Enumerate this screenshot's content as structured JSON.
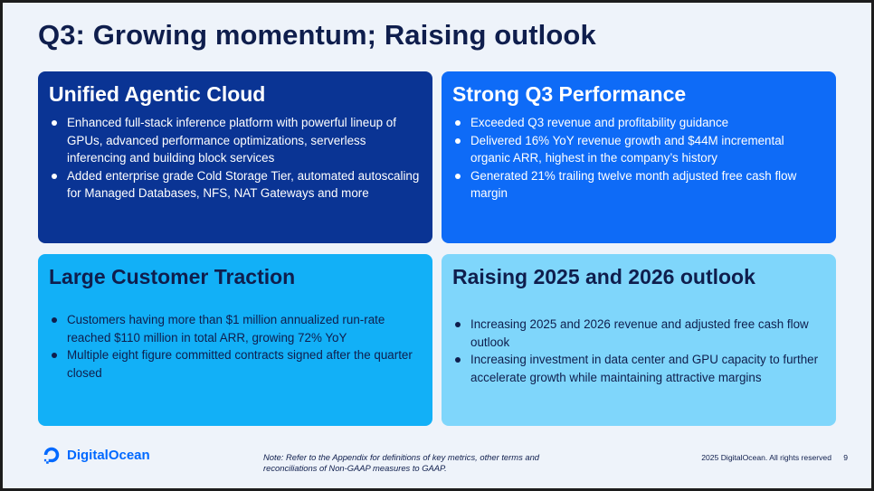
{
  "slide": {
    "title": "Q3: Growing momentum; Raising outlook"
  },
  "cards": [
    {
      "heading": "Unified Agentic Cloud",
      "bullets": [
        "Enhanced full-stack inference platform with powerful lineup of GPUs, advanced performance optimizations, serverless inferencing and building block services",
        "Added enterprise grade Cold Storage Tier, automated autoscaling for Managed Databases, NFS, NAT Gateways and more"
      ]
    },
    {
      "heading": "Strong Q3 Performance",
      "bullets": [
        "Exceeded Q3 revenue and profitability guidance",
        "Delivered 16% YoY revenue growth and $44M incremental organic ARR, highest in the company’s history",
        "Generated 21% trailing twelve month adjusted free cash flow margin"
      ]
    },
    {
      "heading": "Large Customer Traction",
      "bullets": [
        "Customers having more than $1 million annualized run-rate reached $110 million in total ARR, growing 72% YoY",
        "Multiple eight figure committed contracts signed after the quarter closed"
      ]
    },
    {
      "heading": "Raising 2025 and 2026 outlook",
      "bullets": [
        "Increasing 2025 and 2026 revenue and adjusted free cash flow outlook",
        "Increasing investment in data center and GPU capacity to further accelerate growth while maintaining attractive margins"
      ]
    }
  ],
  "footer": {
    "logo_text": "DigitalOcean",
    "note": "Note: Refer to the Appendix for definitions of key metrics, other terms and reconciliations of Non-GAAP measures to GAAP.",
    "copyright": "2025 DigitalOcean. All rights reserved",
    "page_number": "9"
  },
  "colors": {
    "background": "#eef3fa",
    "title": "#0f1e4d",
    "card_1": "#0a3494",
    "card_2": "#0e6bf7",
    "card_3": "#12b0f7",
    "card_4": "#7fd6fb",
    "brand": "#0069ff"
  },
  "icons": {
    "logo": "digitalocean-logo-icon",
    "bullet": "bullet-dot-icon"
  }
}
